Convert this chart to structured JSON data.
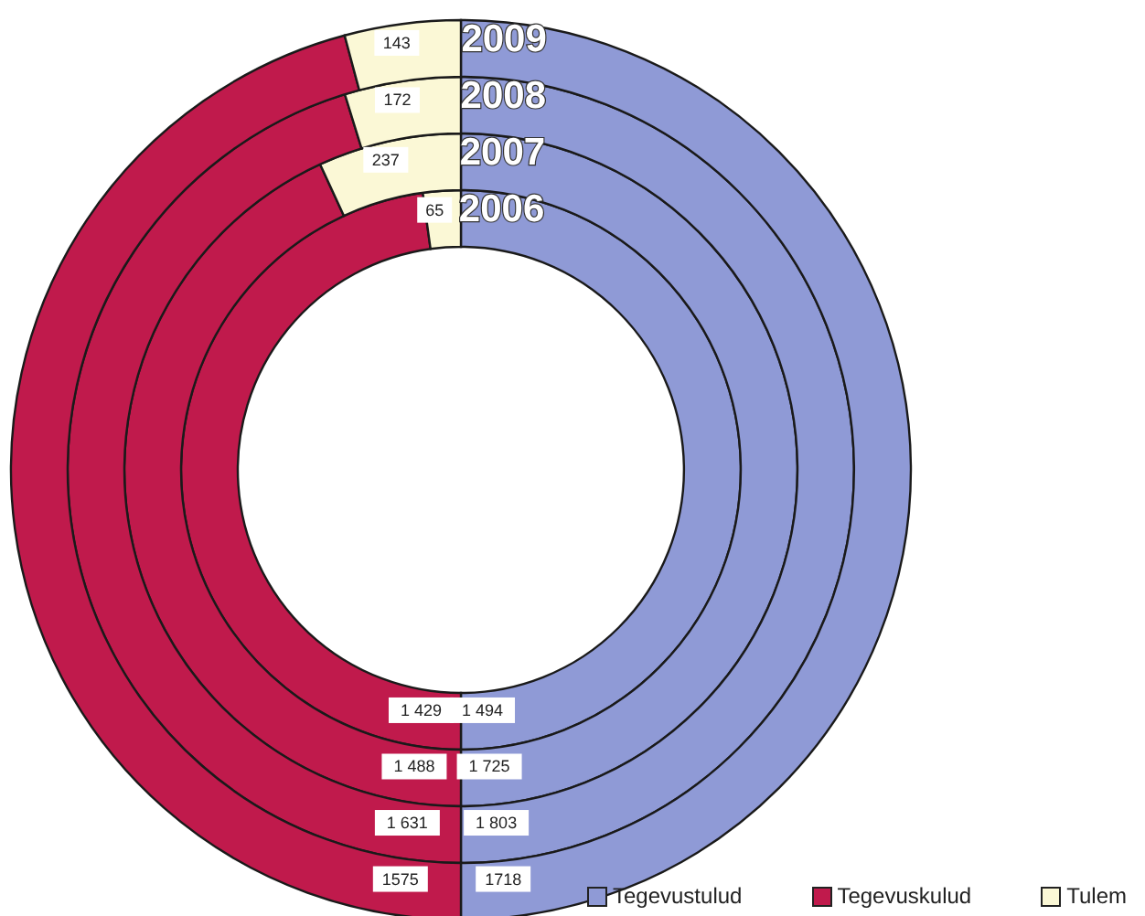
{
  "chart_data": {
    "type": "donut",
    "categories": [
      "Tegevustulud",
      "Tegevuskulud",
      "Tulem"
    ],
    "colors": [
      "#8f9ad6",
      "#c01a4c",
      "#fbf8d6"
    ],
    "series": [
      {
        "name": "2006",
        "values": [
          1494,
          1429,
          65
        ],
        "value_labels": [
          "1 494",
          "1 429",
          "65"
        ]
      },
      {
        "name": "2007",
        "values": [
          1725,
          1488,
          237
        ],
        "value_labels": [
          "1 725",
          "1 488",
          "237"
        ]
      },
      {
        "name": "2008",
        "values": [
          1803,
          1631,
          172
        ],
        "value_labels": [
          "1 803",
          "1 631",
          "172"
        ]
      },
      {
        "name": "2009",
        "values": [
          1718,
          1575,
          143
        ],
        "value_labels": [
          "1718",
          "1575",
          "143"
        ]
      }
    ],
    "legend": "bottom right"
  }
}
